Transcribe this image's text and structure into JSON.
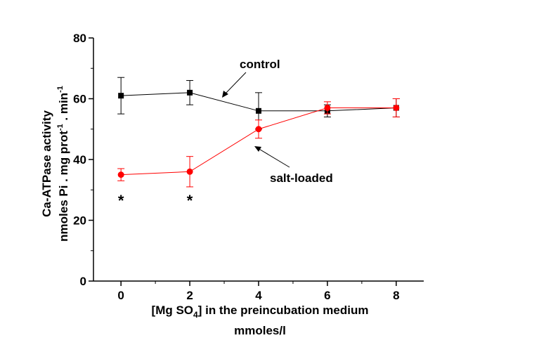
{
  "chart_data": {
    "type": "line",
    "xlabel": "[Mg SO4] in the preincubation medium",
    "xlabel_parts": {
      "pre": "[Mg SO",
      "sub": "4",
      "post": "] in the preincubation medium"
    },
    "xlabel_units": "mmoles/l",
    "ylabel_line1": "Ca-ATPase activity",
    "ylabel_line2": "nmoles Pi . mg prot-1 . min-1",
    "ylabel_parts": {
      "a": "nmoles Pi . mg prot",
      "sup1": "-1",
      "b": " . min",
      "sup2": "-1"
    },
    "xlim": [
      -0.8,
      8.8
    ],
    "ylim": [
      0,
      80
    ],
    "xticks": [
      0,
      2,
      4,
      6,
      8
    ],
    "yticks": [
      0,
      20,
      40,
      60,
      80
    ],
    "grid": false,
    "series": [
      {
        "name": "control",
        "marker": "square",
        "color": "#000000",
        "line_color": "#000000",
        "x": [
          0,
          2,
          4,
          6,
          8
        ],
        "y": [
          61,
          62,
          56,
          56,
          57
        ],
        "err": [
          6,
          4,
          6,
          2,
          3
        ]
      },
      {
        "name": "salt-loaded",
        "marker": "circle",
        "color": "#ff0000",
        "line_color": "#ff0000",
        "x": [
          0,
          2,
          4,
          6,
          8
        ],
        "y": [
          35,
          36,
          50,
          57,
          57
        ],
        "err": [
          2,
          5,
          3,
          2,
          3
        ]
      }
    ],
    "annotations": [
      {
        "text": "*",
        "x": 0,
        "y": 28
      },
      {
        "text": "*",
        "x": 2,
        "y": 28
      }
    ]
  }
}
